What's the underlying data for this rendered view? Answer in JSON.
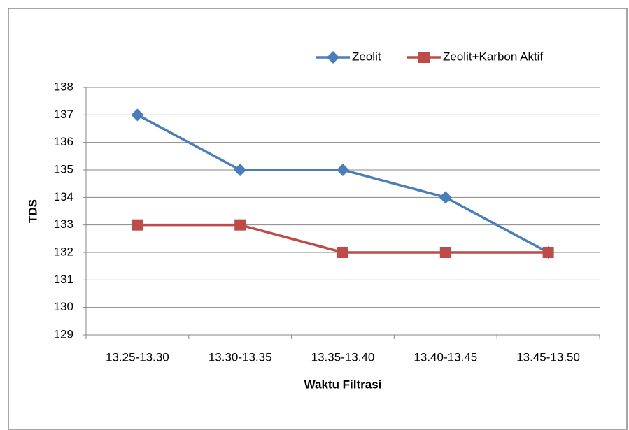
{
  "chart_data": {
    "type": "line",
    "categories": [
      "13.25-13.30",
      "13.30-13.35",
      "13.35-13.40",
      "13.40-13.45",
      "13.45-13.50"
    ],
    "series": [
      {
        "name": "Zeolit",
        "color": "#4a7ebb",
        "marker": "diamond",
        "values": [
          137,
          135,
          135,
          134,
          132
        ]
      },
      {
        "name": "Zeolit+Karbon Aktif",
        "color": "#be4b48",
        "marker": "square",
        "values": [
          133,
          133,
          132,
          132,
          132
        ]
      }
    ],
    "xlabel": "Waktu Filtrasi",
    "ylabel": "TDS",
    "ylim": [
      129,
      138
    ],
    "yticks": [
      129,
      130,
      131,
      132,
      133,
      134,
      135,
      136,
      137,
      138
    ],
    "grid": true,
    "legend": "top-right"
  }
}
